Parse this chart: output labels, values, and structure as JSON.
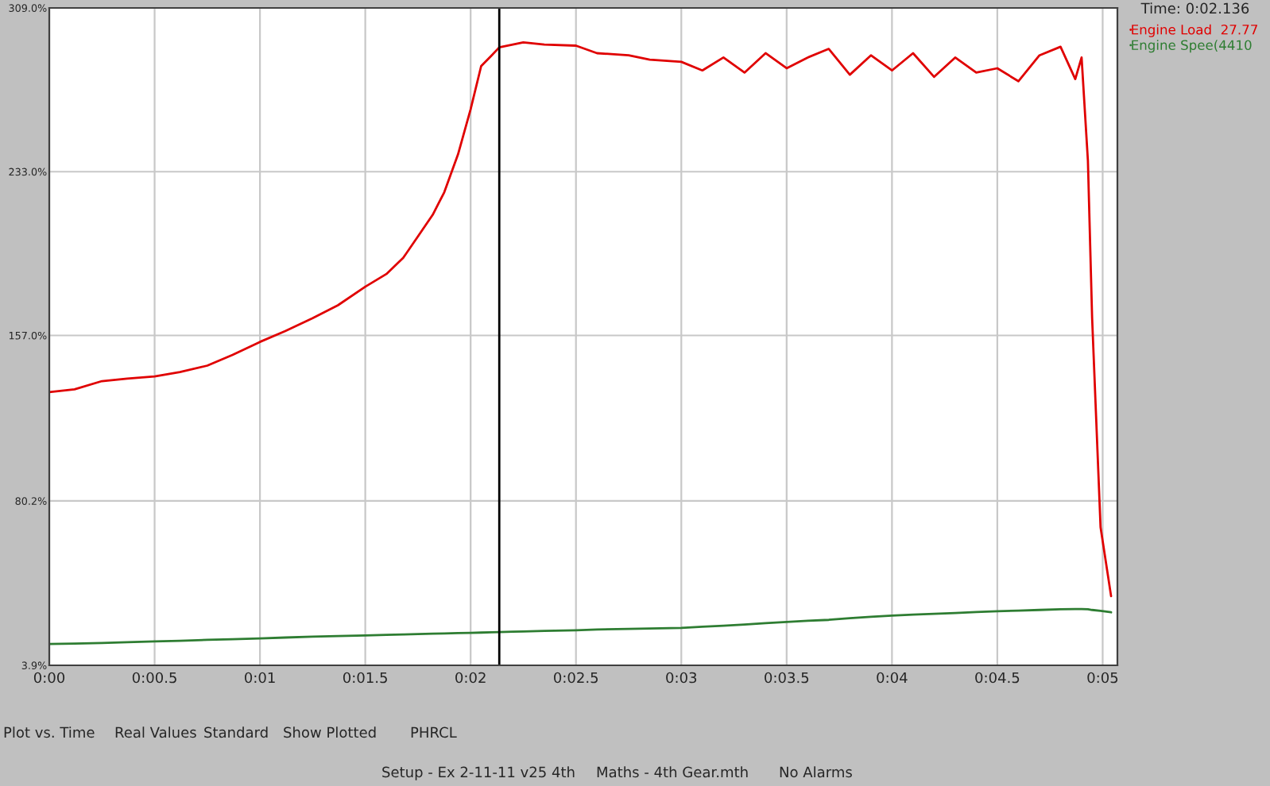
{
  "chart_data": {
    "type": "line",
    "x": [
      0,
      0.12,
      0.25,
      0.37,
      0.5,
      0.62,
      0.75,
      0.87,
      1.0,
      1.12,
      1.25,
      1.37,
      1.5,
      1.6,
      1.68,
      1.75,
      1.82,
      1.875,
      1.94,
      2.0,
      2.05,
      2.1,
      2.136,
      2.2,
      2.25,
      2.35,
      2.5,
      2.6,
      2.75,
      2.85,
      3.0,
      3.1,
      3.2,
      3.3,
      3.4,
      3.5,
      3.6,
      3.7,
      3.8,
      3.9,
      4.0,
      4.1,
      4.2,
      4.3,
      4.4,
      4.5,
      4.6,
      4.7,
      4.8,
      4.87,
      4.9,
      4.93,
      4.95,
      4.99,
      5.04
    ],
    "series": [
      {
        "name": "Engine Load  27.77",
        "color": "#e00000",
        "values": [
          130.7,
          132,
          135.8,
          137,
          138,
          140,
          143,
          148,
          154,
          159,
          165,
          171,
          179.6,
          185.5,
          193,
          203,
          213,
          223.5,
          241,
          262,
          282,
          287,
          290.7,
          292,
          293,
          292,
          291.5,
          288,
          287,
          285,
          284,
          280,
          286,
          279,
          288,
          281,
          286,
          290,
          278,
          287,
          280,
          288,
          277,
          286,
          279,
          281,
          275,
          287,
          291,
          276,
          286,
          238,
          165,
          68,
          36
        ]
      },
      {
        "name": "Engine Spee(4410",
        "color": "#2e7d32",
        "values": [
          13.8,
          14,
          14.3,
          14.6,
          15,
          15.3,
          15.7,
          16,
          16.4,
          16.8,
          17.2,
          17.5,
          17.8,
          18,
          18.2,
          18.4,
          18.6,
          18.7,
          18.9,
          19,
          19.1,
          19.2,
          19.3,
          19.5,
          19.6,
          19.9,
          20.2,
          20.5,
          20.8,
          21,
          21.3,
          21.8,
          22.3,
          22.8,
          23.5,
          24,
          24.6,
          25,
          25.8,
          26.4,
          27,
          27.4,
          27.8,
          28.2,
          28.6,
          29,
          29.3,
          29.6,
          29.9,
          30,
          30,
          29.9,
          29.6,
          29.2,
          28.5
        ]
      }
    ],
    "xlim": [
      0,
      5.07
    ],
    "ylim": [
      3.9,
      309.0
    ],
    "xticks": [
      {
        "value": 0,
        "label": "0:00"
      },
      {
        "value": 0.5,
        "label": "0:00.5"
      },
      {
        "value": 1,
        "label": "0:01"
      },
      {
        "value": 1.5,
        "label": "0:01.5"
      },
      {
        "value": 2,
        "label": "0:02"
      },
      {
        "value": 2.5,
        "label": "0:02.5"
      },
      {
        "value": 3,
        "label": "0:03"
      },
      {
        "value": 3.5,
        "label": "0:03.5"
      },
      {
        "value": 4,
        "label": "0:04"
      },
      {
        "value": 4.5,
        "label": "0:04.5"
      },
      {
        "value": 5,
        "label": "0:05"
      }
    ],
    "yticks": [
      {
        "value": 3.9,
        "label": "3.9%"
      },
      {
        "value": 80.2,
        "label": "80.2%"
      },
      {
        "value": 157.0,
        "label": "157.0%"
      },
      {
        "value": 233.0,
        "label": "233.0%"
      },
      {
        "value": 309.0,
        "label": "309.0%"
      }
    ],
    "ref_lines": [
      {
        "axis": "x",
        "value": 2.136,
        "label": "Time: 0:02.136",
        "color": "#000000"
      }
    ],
    "grid": true,
    "legend": "top right",
    "line_style": "solid",
    "marker": "none",
    "annotations": [
      "Plot vs. Time",
      "Real Values",
      "Standard",
      "Show Plotted",
      "PHRCL",
      "Setup - Ex 2-11-11 v25 4th",
      "Maths - 4th Gear.mth",
      "No Alarms"
    ]
  }
}
